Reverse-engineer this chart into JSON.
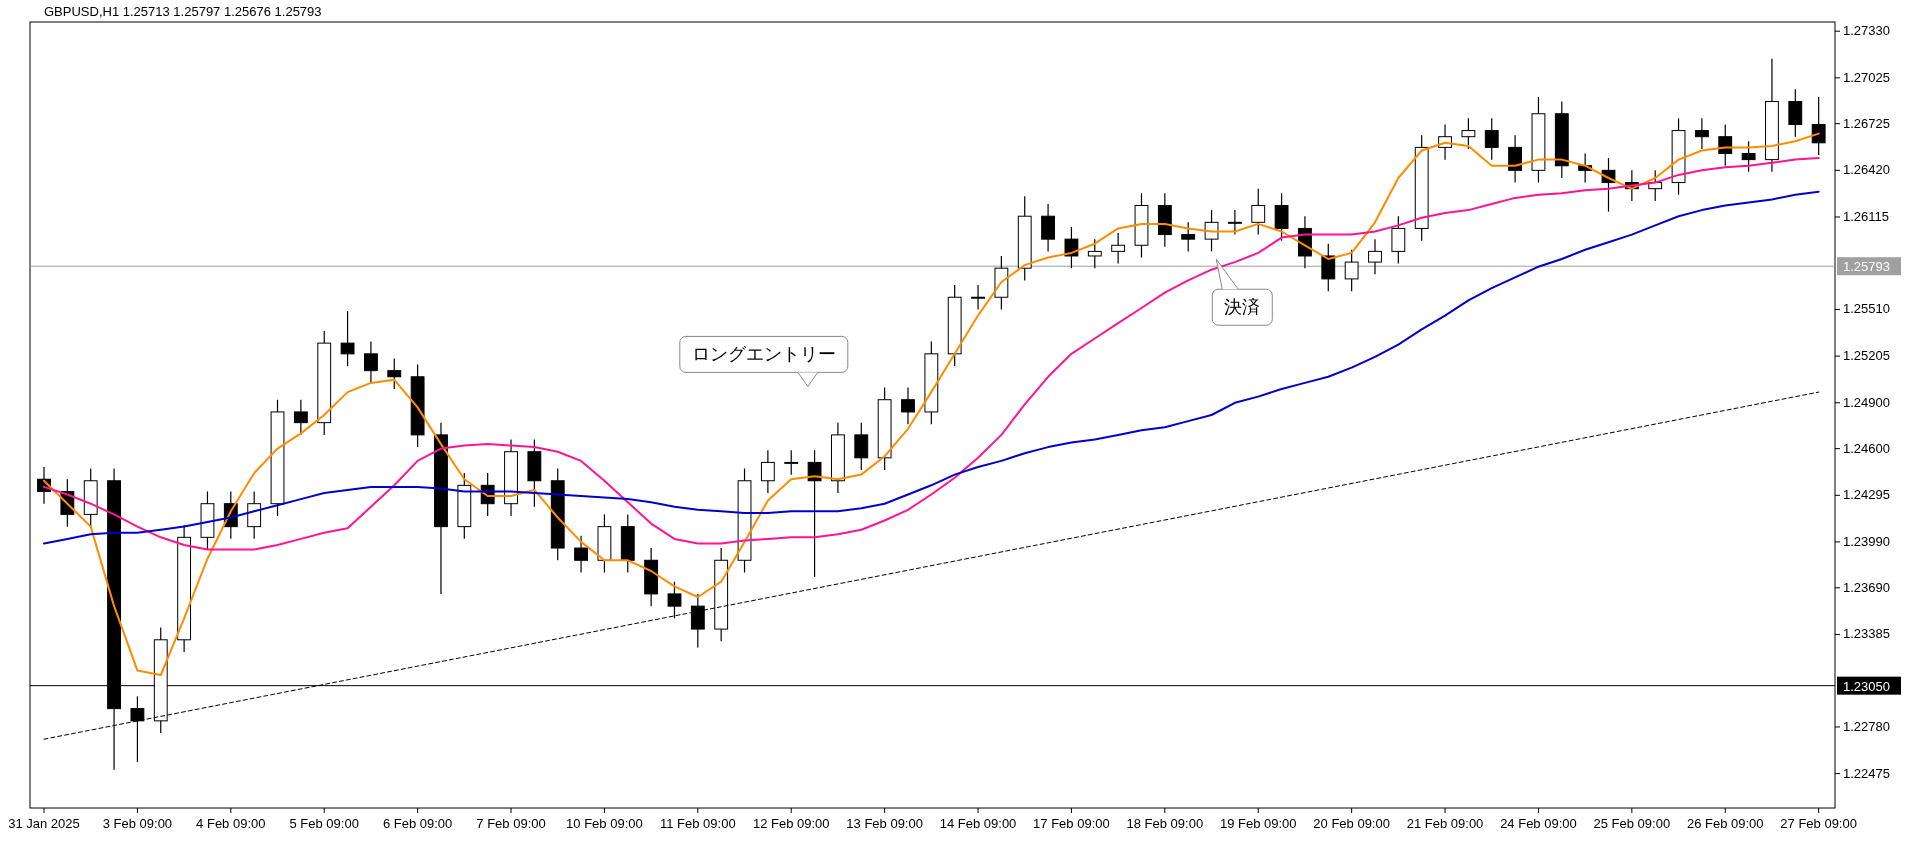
{
  "chart_data": {
    "type": "candlestick",
    "title": "GBPUSD,H1  1.25713 1.25797 1.25676 1.25793",
    "categories": [
      "31 Jan 2025",
      null,
      null,
      null,
      "3 Feb 09:00",
      null,
      null,
      null,
      "4 Feb 09:00",
      null,
      null,
      null,
      "5 Feb 09:00",
      null,
      null,
      null,
      "6 Feb 09:00",
      null,
      null,
      null,
      "7 Feb 09:00",
      null,
      null,
      null,
      "10 Feb 09:00",
      null,
      null,
      null,
      "11 Feb 09:00",
      null,
      null,
      null,
      "12 Feb 09:00",
      null,
      null,
      null,
      "13 Feb 09:00",
      null,
      null,
      null,
      "14 Feb 09:00",
      null,
      null,
      null,
      "17 Feb 09:00",
      null,
      null,
      null,
      "18 Feb 09:00",
      null,
      null,
      null,
      "19 Feb 09:00",
      null,
      null,
      null,
      "20 Feb 09:00",
      null,
      null,
      null,
      "21 Feb 09:00",
      null,
      null,
      null,
      "24 Feb 09:00",
      null,
      null,
      null,
      "25 Feb 09:00",
      null,
      null,
      null,
      "26 Feb 09:00",
      null,
      null,
      null,
      "27 Feb 09:00"
    ],
    "ohlc": [
      [
        1.244,
        1.2448,
        1.2424,
        1.2432
      ],
      [
        1.2432,
        1.244,
        1.2409,
        1.2417
      ],
      [
        1.2417,
        1.2447,
        1.2409,
        1.2439
      ],
      [
        1.2439,
        1.2447,
        1.225,
        1.229
      ],
      [
        1.229,
        1.2298,
        1.2255,
        1.2282
      ],
      [
        1.2282,
        1.2343,
        1.2274,
        1.2335
      ],
      [
        1.2335,
        1.241,
        1.2327,
        1.2402
      ],
      [
        1.2402,
        1.2432,
        1.2394,
        1.2424
      ],
      [
        1.2424,
        1.2432,
        1.2401,
        1.2409
      ],
      [
        1.2409,
        1.2432,
        1.2401,
        1.2424
      ],
      [
        1.2424,
        1.2492,
        1.2416,
        1.2484
      ],
      [
        1.2484,
        1.2492,
        1.2469,
        1.2477
      ],
      [
        1.2477,
        1.2537,
        1.2469,
        1.2529
      ],
      [
        1.2529,
        1.255,
        1.2514,
        1.2522
      ],
      [
        1.2522,
        1.253,
        1.2503,
        1.2511
      ],
      [
        1.2511,
        1.2519,
        1.2499,
        1.2507
      ],
      [
        1.2507,
        1.2515,
        1.2461,
        1.2469
      ],
      [
        1.2469,
        1.2477,
        1.2365,
        1.2409
      ],
      [
        1.2409,
        1.2444,
        1.2401,
        1.2436
      ],
      [
        1.2436,
        1.2444,
        1.2416,
        1.2424
      ],
      [
        1.2424,
        1.2466,
        1.2416,
        1.2458
      ],
      [
        1.2458,
        1.2466,
        1.2422,
        1.2439
      ],
      [
        1.2439,
        1.2447,
        1.2387,
        1.2395
      ],
      [
        1.2395,
        1.2403,
        1.2379,
        1.2387
      ],
      [
        1.2387,
        1.2417,
        1.2379,
        1.2409
      ],
      [
        1.2409,
        1.2417,
        1.2379,
        1.2387
      ],
      [
        1.2387,
        1.2395,
        1.2357,
        1.2365
      ],
      [
        1.2365,
        1.2373,
        1.2349,
        1.2357
      ],
      [
        1.2357,
        1.2365,
        1.233,
        1.2342
      ],
      [
        1.2342,
        1.2395,
        1.2334,
        1.2387
      ],
      [
        1.2387,
        1.2447,
        1.2379,
        1.2439
      ],
      [
        1.2439,
        1.2459,
        1.2431,
        1.2451
      ],
      [
        1.2451,
        1.2459,
        1.2443,
        1.2451
      ],
      [
        1.2451,
        1.2459,
        1.2376,
        1.2439
      ],
      [
        1.2439,
        1.2477,
        1.2431,
        1.2469
      ],
      [
        1.2469,
        1.2477,
        1.2446,
        1.2454
      ],
      [
        1.2454,
        1.25,
        1.2446,
        1.2492
      ],
      [
        1.2492,
        1.25,
        1.2476,
        1.2484
      ],
      [
        1.2484,
        1.253,
        1.2476,
        1.2522
      ],
      [
        1.2522,
        1.2567,
        1.2514,
        1.2559
      ],
      [
        1.2559,
        1.2567,
        1.2551,
        1.2559
      ],
      [
        1.2559,
        1.2586,
        1.2551,
        1.2578
      ],
      [
        1.2578,
        1.2625,
        1.257,
        1.2612
      ],
      [
        1.2612,
        1.262,
        1.2589,
        1.2597
      ],
      [
        1.2597,
        1.2605,
        1.2578,
        1.2586
      ],
      [
        1.2586,
        1.2597,
        1.2578,
        1.2589
      ],
      [
        1.2589,
        1.2601,
        1.2581,
        1.2593
      ],
      [
        1.2593,
        1.2627,
        1.2585,
        1.2619
      ],
      [
        1.2619,
        1.2627,
        1.2592,
        1.26
      ],
      [
        1.26,
        1.2608,
        1.2589,
        1.2597
      ],
      [
        1.2597,
        1.2616,
        1.2589,
        1.2608
      ],
      [
        1.2608,
        1.2616,
        1.26,
        1.2608
      ],
      [
        1.2608,
        1.263,
        1.26,
        1.2619
      ],
      [
        1.2619,
        1.2627,
        1.2596,
        1.2604
      ],
      [
        1.2604,
        1.2612,
        1.2578,
        1.2586
      ],
      [
        1.2586,
        1.2594,
        1.2563,
        1.2571
      ],
      [
        1.2571,
        1.259,
        1.2563,
        1.2582
      ],
      [
        1.2582,
        1.2597,
        1.2574,
        1.2589
      ],
      [
        1.2589,
        1.2612,
        1.2581,
        1.2604
      ],
      [
        1.2604,
        1.2665,
        1.2596,
        1.2657
      ],
      [
        1.2657,
        1.2672,
        1.2649,
        1.2664
      ],
      [
        1.2664,
        1.2676,
        1.2656,
        1.2668
      ],
      [
        1.2668,
        1.2676,
        1.2649,
        1.2657
      ],
      [
        1.2657,
        1.2665,
        1.2634,
        1.2642
      ],
      [
        1.2642,
        1.269,
        1.2634,
        1.2679
      ],
      [
        1.2679,
        1.2687,
        1.2637,
        1.2645
      ],
      [
        1.2645,
        1.2653,
        1.2634,
        1.2642
      ],
      [
        1.2642,
        1.265,
        1.2615,
        1.2634
      ],
      [
        1.2634,
        1.2642,
        1.2622,
        1.263
      ],
      [
        1.263,
        1.2642,
        1.2622,
        1.2634
      ],
      [
        1.2634,
        1.2676,
        1.2626,
        1.2668
      ],
      [
        1.2668,
        1.2676,
        1.2656,
        1.2664
      ],
      [
        1.2664,
        1.2672,
        1.2645,
        1.2653
      ],
      [
        1.2653,
        1.2661,
        1.2641,
        1.2649
      ],
      [
        1.2649,
        1.2715,
        1.2641,
        1.2687
      ],
      [
        1.2687,
        1.2695,
        1.2664,
        1.2672
      ],
      [
        1.2672,
        1.269,
        1.2652,
        1.266
      ]
    ],
    "series": [
      {
        "type": "line",
        "color": "#ff8c00",
        "values": [
          1.2439,
          1.2424,
          1.2409,
          1.2357,
          1.2315,
          1.2312,
          1.2349,
          1.2388,
          1.2419,
          1.2444,
          1.246,
          1.247,
          1.2482,
          1.2497,
          1.2503,
          1.2505,
          1.2487,
          1.2463,
          1.244,
          1.2429,
          1.2429,
          1.2433,
          1.2415,
          1.2399,
          1.2387,
          1.2387,
          1.238,
          1.237,
          1.2363,
          1.2373,
          1.2399,
          1.2426,
          1.244,
          1.2442,
          1.244,
          1.2443,
          1.2455,
          1.2473,
          1.2497,
          1.2522,
          1.2547,
          1.2569,
          1.258,
          1.2585,
          1.2588,
          1.2594,
          1.2604,
          1.2607,
          1.2607,
          1.2604,
          1.2602,
          1.2602,
          1.2607,
          1.2602,
          1.2593,
          1.2584,
          1.2588,
          1.2608,
          1.2637,
          1.2655,
          1.266,
          1.2658,
          1.2645,
          1.2645,
          1.2649,
          1.2649,
          1.2645,
          1.2637,
          1.263,
          1.2637,
          1.2649,
          1.2655,
          1.2657,
          1.2657,
          1.2658,
          1.2661,
          1.2666
        ]
      },
      {
        "type": "line",
        "color": "#ff1493",
        "values": [
          1.2435,
          1.243,
          1.2424,
          1.2417,
          1.2409,
          1.2402,
          1.2397,
          1.2394,
          1.2394,
          1.2394,
          1.2397,
          1.2401,
          1.2405,
          1.2408,
          1.2422,
          1.2436,
          1.2452,
          1.246,
          1.2462,
          1.2463,
          1.2462,
          1.2461,
          1.2458,
          1.2452,
          1.2439,
          1.2425,
          1.2411,
          1.2401,
          1.2398,
          1.2398,
          1.24,
          1.2401,
          1.2402,
          1.2402,
          1.2404,
          1.2407,
          1.2413,
          1.242,
          1.243,
          1.2441,
          1.2454,
          1.2469,
          1.2489,
          1.2507,
          1.2522,
          1.2532,
          1.2542,
          1.2552,
          1.2562,
          1.257,
          1.2577,
          1.2582,
          1.2588,
          1.2598,
          1.26,
          1.26,
          1.26,
          1.2602,
          1.2606,
          1.2611,
          1.2614,
          1.2616,
          1.262,
          1.2624,
          1.2626,
          1.2627,
          1.2629,
          1.263,
          1.2632,
          1.2634,
          1.2639,
          1.2642,
          1.2644,
          1.2645,
          1.2647,
          1.2649,
          1.265
        ]
      },
      {
        "type": "line",
        "color": "#0000cd",
        "values": [
          1.2398,
          1.2401,
          1.2404,
          1.2405,
          1.2405,
          1.2407,
          1.2409,
          1.2412,
          1.2415,
          1.2419,
          1.2423,
          1.2427,
          1.2431,
          1.2433,
          1.2435,
          1.2435,
          1.2435,
          1.2434,
          1.2432,
          1.2432,
          1.2432,
          1.2431,
          1.243,
          1.2429,
          1.2428,
          1.2427,
          1.2425,
          1.2422,
          1.242,
          1.2419,
          1.2418,
          1.2418,
          1.2419,
          1.2419,
          1.2419,
          1.2421,
          1.2424,
          1.243,
          1.2436,
          1.2443,
          1.2448,
          1.2452,
          1.2457,
          1.2461,
          1.2464,
          1.2466,
          1.2469,
          1.2472,
          1.2474,
          1.2478,
          1.2482,
          1.249,
          1.2494,
          1.2499,
          1.2503,
          1.2507,
          1.2513,
          1.252,
          1.2528,
          1.2538,
          1.2547,
          1.2557,
          1.2565,
          1.2572,
          1.2579,
          1.2584,
          1.259,
          1.2595,
          1.26,
          1.2606,
          1.2612,
          1.2616,
          1.2619,
          1.2621,
          1.2623,
          1.2626,
          1.2628
        ]
      },
      {
        "type": "line",
        "color": "#000000",
        "line_style": "dashed",
        "x": [
          "31 Jan 2025",
          "27 Feb 09:00"
        ],
        "values": [
          1.227,
          1.2497
        ]
      }
    ],
    "ylim": [
      1.2225,
      1.2739
    ],
    "yticks": [
      {
        "value": 1.2733,
        "label": "1.27330"
      },
      {
        "value": 1.27025,
        "label": "1.27025"
      },
      {
        "value": 1.26725,
        "label": "1.26725"
      },
      {
        "value": 1.2642,
        "label": "1.26420"
      },
      {
        "value": 1.26115,
        "label": "1.26115"
      },
      {
        "value": 1.2551,
        "label": "1.25510"
      },
      {
        "value": 1.25205,
        "label": "1.25205"
      },
      {
        "value": 1.249,
        "label": "1.24900"
      },
      {
        "value": 1.246,
        "label": "1.24600"
      },
      {
        "value": 1.24295,
        "label": "1.24295"
      },
      {
        "value": 1.2399,
        "label": "1.23990"
      },
      {
        "value": 1.2369,
        "label": "1.23690"
      },
      {
        "value": 1.23385,
        "label": "1.23385"
      },
      {
        "value": 1.2278,
        "label": "1.22780"
      },
      {
        "value": 1.22475,
        "label": "1.22475"
      }
    ],
    "ref_lines": [
      {
        "axis": "y",
        "value": 1.25793,
        "label": "1.25793",
        "color": "#a0a0a0"
      },
      {
        "axis": "y",
        "value": 1.2305,
        "label": "1.23050",
        "color": "#000000"
      }
    ],
    "annotations": [
      "ロングエントリー",
      "決済"
    ]
  }
}
